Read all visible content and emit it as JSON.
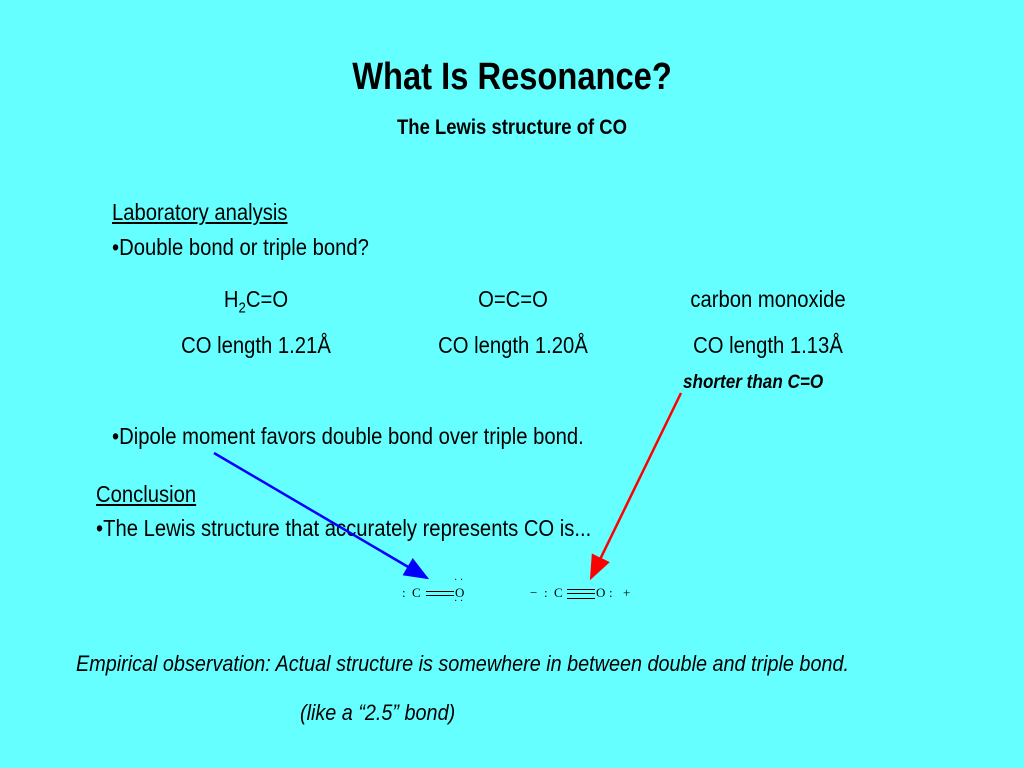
{
  "title": "What Is Resonance?",
  "subtitle": "The Lewis structure of CO",
  "lab": {
    "heading": "Laboratory analysis",
    "bullet1": "•Double bond or triple bond?",
    "bullet2": "•Dipole moment favors double bond over triple bond."
  },
  "compounds": [
    {
      "formula_pre": "H",
      "formula_sub": "2",
      "formula_post": "C=O",
      "length": "CO length 1.21Å"
    },
    {
      "formula": "O=C=O",
      "length": "CO length 1.20Å"
    },
    {
      "formula": "carbon monoxide",
      "length": "CO length 1.13Å",
      "note": "shorter than C=O"
    }
  ],
  "conclusion": {
    "heading": "Conclusion",
    "bullet": "•The Lewis structure that accurately represents CO is..."
  },
  "lewis": {
    "double": {
      "left_pair": ":",
      "c": "C",
      "o": "O",
      "o_top": "· ·",
      "o_bottom": "· ·"
    },
    "triple": {
      "minus": "−",
      "left_pair": ":",
      "c": "C",
      "o": "O",
      "right_pair": ":",
      "plus": "+"
    }
  },
  "arrow_colors": {
    "blue": "#0000FF",
    "red": "#FF0000"
  },
  "observation": "Empirical observation: Actual structure is somewhere in between double and triple bond.",
  "observation_note": "(like a “2.5” bond)"
}
